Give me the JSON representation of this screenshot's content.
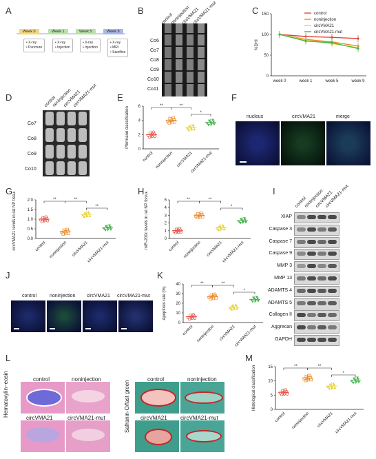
{
  "panels": {
    "A": "A",
    "B": "B",
    "C": "C",
    "D": "D",
    "E": "E",
    "F": "F",
    "G": "G",
    "H": "H",
    "I": "I",
    "J": "J",
    "K": "K",
    "L": "L",
    "M": "M"
  },
  "timeline": {
    "weeks": [
      "Week 0",
      "Week 1",
      "Week 5",
      "Week 9"
    ],
    "boxes": [
      [
        "• X-ray",
        "• Puncture"
      ],
      [
        "• X-ray",
        "• Injection"
      ],
      [
        "• X-ray",
        "• Injection"
      ],
      [
        "• X-ray",
        "• MRI",
        "• Sacrifice"
      ]
    ],
    "colors": [
      "#f5d77a",
      "#b6e3a8",
      "#b6e3a8",
      "#a9b8e8"
    ]
  },
  "groups": [
    "control",
    "noninjection",
    "circVMA21",
    "circVMA21-mut"
  ],
  "B_levels": [
    "Co6",
    "Co7",
    "Co8",
    "Co9",
    "Co10",
    "Co11"
  ],
  "D_levels": [
    "Co7",
    "Co8",
    "Co9",
    "Co10"
  ],
  "colors": {
    "control": "#e0473a",
    "noninjection": "#e88a2a",
    "circVMA21": "#e8d43a",
    "circVMA21_mut": "#45b54a"
  },
  "chart_C": {
    "type": "line",
    "ylabel": "%DHI",
    "x": [
      "week 0",
      "week 1",
      "week 5",
      "week 9"
    ],
    "ylim": [
      0,
      150
    ],
    "yticks": [
      "0",
      "50",
      "100",
      "150"
    ],
    "series": [
      {
        "name": "control",
        "values": [
          100,
          95,
          93,
          90
        ]
      },
      {
        "name": "noninjection",
        "values": [
          100,
          88,
          82,
          72
        ]
      },
      {
        "name": "circVMA21",
        "values": [
          100,
          86,
          78,
          68
        ]
      },
      {
        "name": "circVMA21-mut",
        "values": [
          100,
          84,
          80,
          66
        ]
      }
    ]
  },
  "chart_E": {
    "ylabel": "Pfirrmann classification",
    "ylim": [
      0,
      6
    ],
    "yticks": [
      "0",
      "2",
      "4",
      "6"
    ],
    "values": [
      2.0,
      4.0,
      3.0,
      3.7
    ],
    "sig": [
      "**",
      "**",
      "*"
    ]
  },
  "chart_G": {
    "ylabel": "circVMA21 levels in rat NP tissues",
    "ylim": [
      0,
      2.0
    ],
    "yticks": [
      "0.0",
      "0.5",
      "1.0",
      "1.5",
      "2.0"
    ],
    "values": [
      1.0,
      0.35,
      1.25,
      0.55
    ],
    "sig": [
      "**",
      "**",
      "**"
    ]
  },
  "chart_H": {
    "ylabel": "miR-200c levels in rat NP tissues",
    "ylim": [
      0,
      5
    ],
    "yticks": [
      "0",
      "1",
      "2",
      "3",
      "4",
      "5"
    ],
    "values": [
      1.0,
      3.0,
      1.4,
      2.3
    ],
    "sig": [
      "**",
      "**",
      "*"
    ]
  },
  "chart_K": {
    "ylabel": "Apoptosis rate (%)",
    "ylim": [
      0,
      40
    ],
    "yticks": [
      "0",
      "10",
      "20",
      "30",
      "40"
    ],
    "values": [
      6,
      27,
      16,
      24
    ],
    "sig": [
      "**",
      "**",
      "*"
    ]
  },
  "chart_M": {
    "ylabel": "Histological classification",
    "ylim": [
      0,
      15
    ],
    "yticks": [
      "0",
      "5",
      "10",
      "15"
    ],
    "values": [
      6,
      11,
      8.2,
      10.2
    ],
    "sig": [
      "**",
      "**",
      "*"
    ]
  },
  "F_labels": [
    "nucleus",
    "circVMA21",
    "merge"
  ],
  "J_labels": [
    "control",
    "noninjection",
    "circVMA21",
    "circVMA21-mut"
  ],
  "blots": [
    "XIAP",
    "Caspase 3",
    "Caspase 7",
    "Caspase 9",
    "MMP 3",
    "MMP 13",
    "ADAMTS 4",
    "ADAMTS 5",
    "Collagen II",
    "Aggrecan",
    "GAPDH"
  ],
  "L": {
    "he_label": "Hematoxylin−eosin",
    "so_label": "Safranin-O/fast green",
    "tiles": [
      "control",
      "noninjection",
      "circVMA21",
      "circVMA21-mut"
    ]
  }
}
